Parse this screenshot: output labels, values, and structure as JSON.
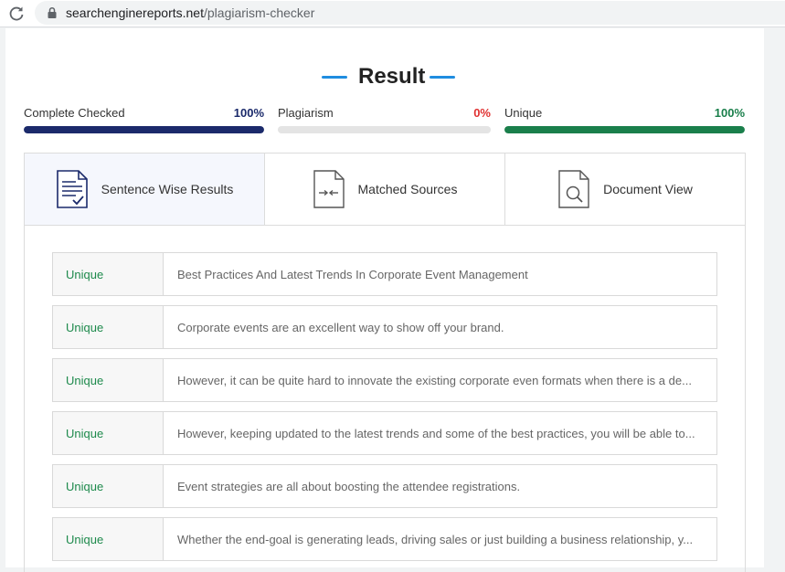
{
  "browser": {
    "url_domain": "searchenginereports.net",
    "url_path": "/plagiarism-checker"
  },
  "result": {
    "title": "Result"
  },
  "stats": [
    {
      "label": "Complete Checked",
      "value": "100%",
      "fraction": 1.0,
      "color": "#1b2a6b"
    },
    {
      "label": "Plagiarism",
      "value": "0%",
      "fraction": 0.0,
      "color": "#e03131"
    },
    {
      "label": "Unique",
      "value": "100%",
      "fraction": 1.0,
      "color": "#1a7f4b"
    }
  ],
  "tabs": [
    {
      "label": "Sentence Wise Results",
      "icon": "document-check-icon",
      "active": true
    },
    {
      "label": "Matched Sources",
      "icon": "document-compare-icon",
      "active": false
    },
    {
      "label": "Document View",
      "icon": "document-search-icon",
      "active": false
    }
  ],
  "results": [
    {
      "status": "Unique",
      "text": "Best Practices And Latest Trends In Corporate Event Management"
    },
    {
      "status": "Unique",
      "text": "Corporate events are an excellent way to show off your brand."
    },
    {
      "status": "Unique",
      "text": "However, it can be quite hard to innovate the existing corporate even formats when there is a de..."
    },
    {
      "status": "Unique",
      "text": "However, keeping updated to the latest trends and some of the best practices, you will be able to..."
    },
    {
      "status": "Unique",
      "text": "Event strategies are all about boosting the attendee registrations."
    },
    {
      "status": "Unique",
      "text": "Whether the end-goal is generating leads, driving sales or just building a business relationship, y..."
    }
  ]
}
